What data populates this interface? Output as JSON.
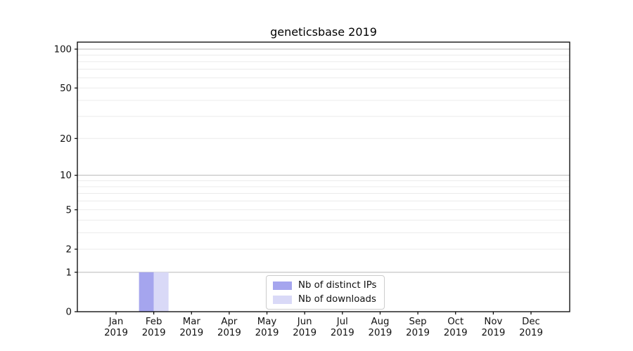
{
  "title": "geneticsbase 2019",
  "legend": {
    "items": [
      {
        "label": "Nb of distinct IPs",
        "color": "#a5a5ee"
      },
      {
        "label": "Nb of downloads",
        "color": "#d9d9f7"
      }
    ]
  },
  "chart_data": {
    "type": "bar",
    "title": "geneticsbase 2019",
    "categories": [
      "Jan 2019",
      "Feb 2019",
      "Mar 2019",
      "Apr 2019",
      "May 2019",
      "Jun 2019",
      "Jul 2019",
      "Aug 2019",
      "Sep 2019",
      "Oct 2019",
      "Nov 2019",
      "Dec 2019"
    ],
    "series": [
      {
        "name": "Nb of distinct IPs",
        "color": "#a5a5ee",
        "values": [
          0,
          1,
          0,
          0,
          0,
          0,
          0,
          0,
          0,
          0,
          0,
          0
        ]
      },
      {
        "name": "Nb of downloads",
        "color": "#d9d9f7",
        "values": [
          0,
          1,
          0,
          0,
          0,
          0,
          0,
          0,
          0,
          0,
          0,
          0
        ]
      }
    ],
    "y_scale": "log10(1+v)",
    "y_ticks": [
      0,
      1,
      2,
      5,
      10,
      20,
      50,
      100
    ],
    "y_minor_grid": [
      2,
      3,
      4,
      5,
      6,
      7,
      8,
      9,
      20,
      30,
      40,
      50,
      60,
      70,
      80,
      90
    ],
    "y_major_grid": [
      1,
      10,
      100
    ],
    "ylim": [
      0,
      113
    ],
    "legend_position": "lower center",
    "grid": "horizontal",
    "colors": {
      "major_grid": "#b8b8b8",
      "minor_grid": "#ebebeb",
      "axis": "#000000",
      "tick_text": "#111111"
    }
  }
}
